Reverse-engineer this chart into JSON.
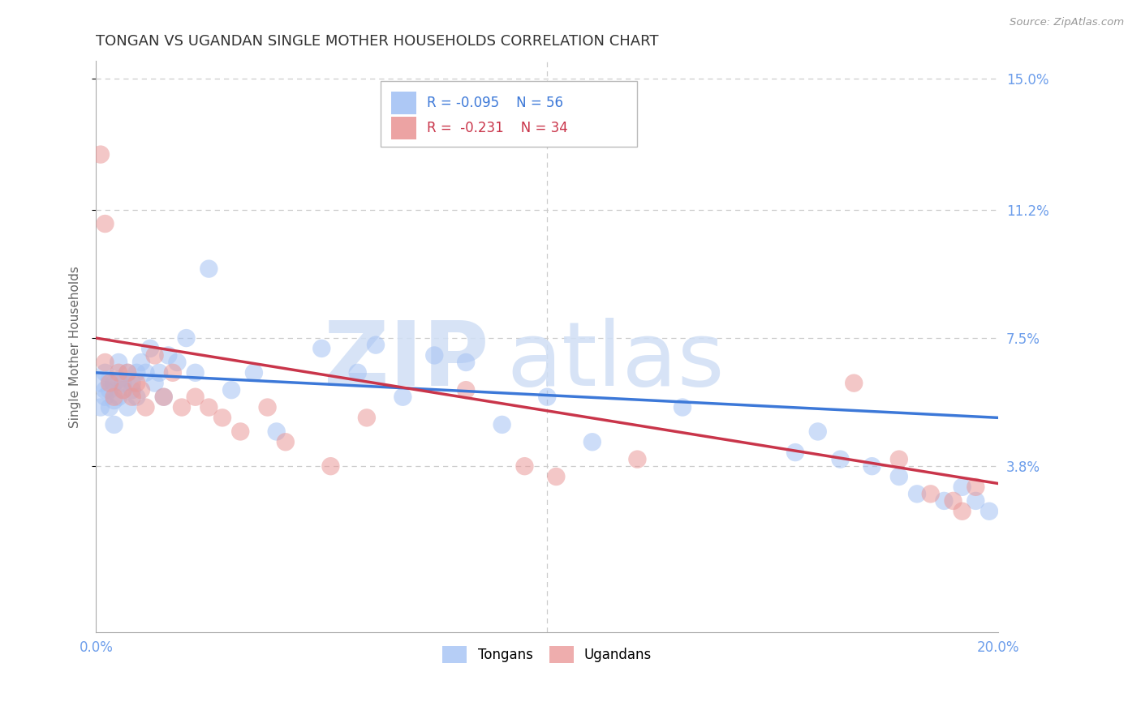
{
  "title": "TONGAN VS UGANDAN SINGLE MOTHER HOUSEHOLDS CORRELATION CHART",
  "source": "Source: ZipAtlas.com",
  "ylabel": "Single Mother Households",
  "legend_tongans": "Tongans",
  "legend_ugandans": "Ugandans",
  "r_tongans": -0.095,
  "n_tongans": 56,
  "r_ugandans": -0.231,
  "n_ugandans": 34,
  "color_tongans": "#a4c2f4",
  "color_ugandans": "#ea9999",
  "color_line_tongans": "#3c78d8",
  "color_line_ugandans": "#c9354a",
  "color_tick_labels": "#6d9eeb",
  "xmin": 0.0,
  "xmax": 0.2,
  "ymin": 0.0,
  "ymax": 0.155,
  "yticks": [
    0.038,
    0.075,
    0.112,
    0.15
  ],
  "ytick_labels": [
    "3.8%",
    "7.5%",
    "11.2%",
    "15.0%"
  ],
  "grid_color": "#cccccc",
  "background_color": "#ffffff",
  "line_tongans_x0": 0.0,
  "line_tongans_y0": 0.065,
  "line_tongans_x1": 0.2,
  "line_tongans_y1": 0.052,
  "line_ugandans_x0": 0.0,
  "line_ugandans_y0": 0.075,
  "line_ugandans_x1": 0.2,
  "line_ugandans_y1": 0.033,
  "tongans_x": [
    0.001,
    0.001,
    0.002,
    0.002,
    0.002,
    0.003,
    0.003,
    0.003,
    0.004,
    0.004,
    0.004,
    0.005,
    0.005,
    0.005,
    0.006,
    0.006,
    0.007,
    0.007,
    0.008,
    0.008,
    0.009,
    0.009,
    0.01,
    0.011,
    0.012,
    0.013,
    0.014,
    0.015,
    0.016,
    0.018,
    0.02,
    0.022,
    0.025,
    0.03,
    0.035,
    0.04,
    0.05,
    0.058,
    0.062,
    0.068,
    0.075,
    0.082,
    0.09,
    0.1,
    0.11,
    0.13,
    0.155,
    0.16,
    0.165,
    0.172,
    0.178,
    0.182,
    0.188,
    0.192,
    0.195,
    0.198
  ],
  "tongans_y": [
    0.062,
    0.055,
    0.06,
    0.058,
    0.065,
    0.06,
    0.055,
    0.063,
    0.057,
    0.062,
    0.05,
    0.058,
    0.063,
    0.068,
    0.06,
    0.062,
    0.055,
    0.065,
    0.06,
    0.062,
    0.065,
    0.058,
    0.068,
    0.065,
    0.072,
    0.062,
    0.065,
    0.058,
    0.07,
    0.068,
    0.075,
    0.065,
    0.095,
    0.06,
    0.065,
    0.048,
    0.072,
    0.065,
    0.073,
    0.058,
    0.07,
    0.068,
    0.05,
    0.058,
    0.045,
    0.055,
    0.042,
    0.048,
    0.04,
    0.038,
    0.035,
    0.03,
    0.028,
    0.032,
    0.028,
    0.025
  ],
  "ugandans_x": [
    0.001,
    0.002,
    0.002,
    0.003,
    0.004,
    0.005,
    0.006,
    0.007,
    0.008,
    0.009,
    0.01,
    0.011,
    0.013,
    0.015,
    0.017,
    0.019,
    0.022,
    0.025,
    0.028,
    0.032,
    0.038,
    0.042,
    0.052,
    0.06,
    0.082,
    0.095,
    0.102,
    0.12,
    0.168,
    0.178,
    0.185,
    0.19,
    0.192,
    0.195
  ],
  "ugandans_y": [
    0.128,
    0.108,
    0.068,
    0.062,
    0.058,
    0.065,
    0.06,
    0.065,
    0.058,
    0.062,
    0.06,
    0.055,
    0.07,
    0.058,
    0.065,
    0.055,
    0.058,
    0.055,
    0.052,
    0.048,
    0.055,
    0.045,
    0.038,
    0.052,
    0.06,
    0.038,
    0.035,
    0.04,
    0.062,
    0.04,
    0.03,
    0.028,
    0.025,
    0.032
  ]
}
